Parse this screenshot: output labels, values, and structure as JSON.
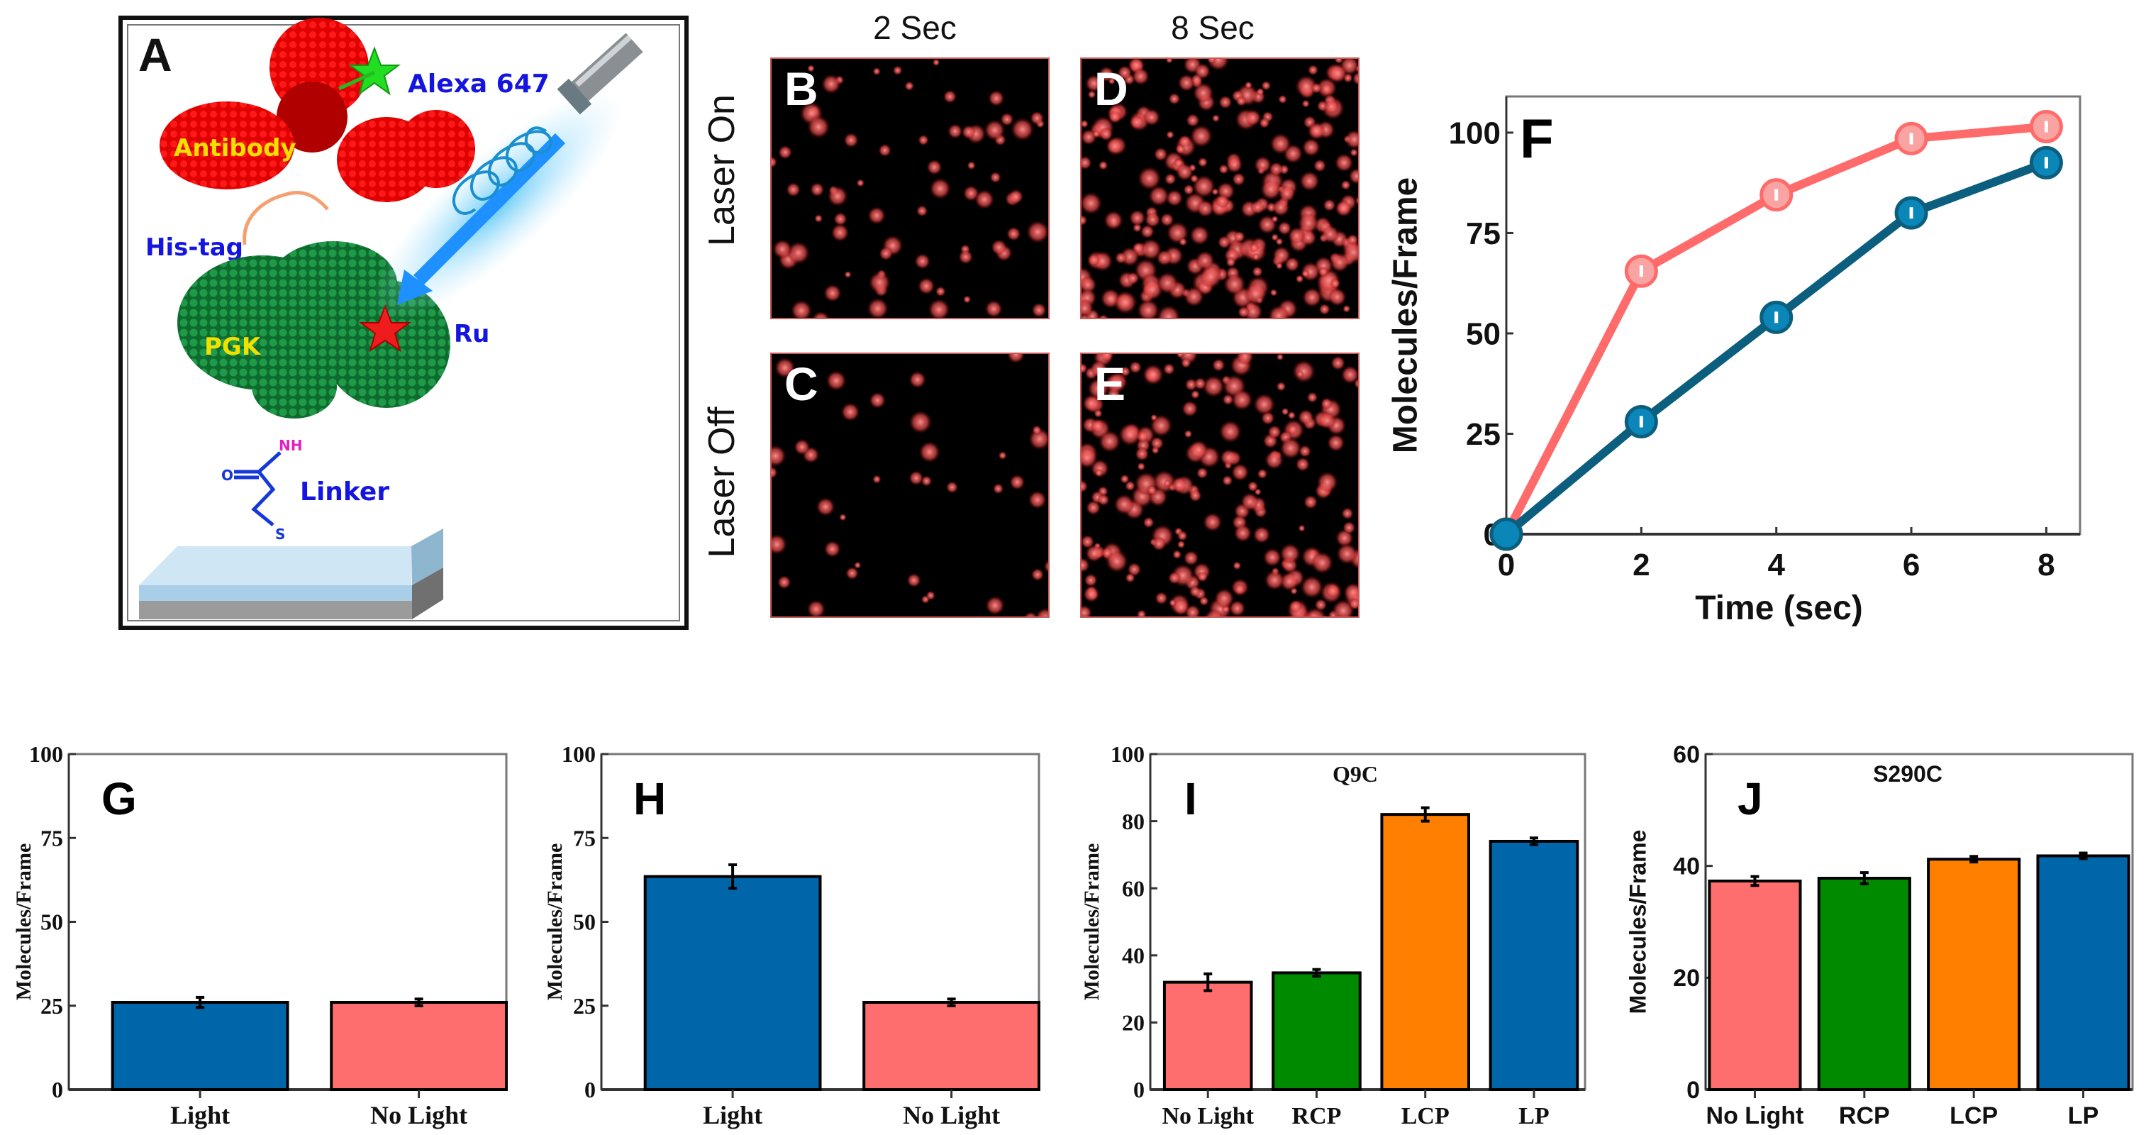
{
  "panel_a": {
    "label": "A",
    "alexa": "Alexa 647",
    "antibody": "Antibody",
    "his_tag": "His-tag",
    "pgk": "PGK",
    "ru": "Ru",
    "linker": "Linker",
    "nh": "NH",
    "o": "O",
    "s": "S"
  },
  "microscopy": {
    "columns": [
      "2 Sec",
      "8 Sec"
    ],
    "rows": [
      "Laser On",
      "Laser Off"
    ],
    "panels": [
      {
        "label": "B",
        "row": 0,
        "col": 0
      },
      {
        "label": "D",
        "row": 0,
        "col": 1
      },
      {
        "label": "C",
        "row": 1,
        "col": 0
      },
      {
        "label": "E",
        "row": 1,
        "col": 1
      }
    ]
  },
  "chart_data": [
    {
      "id": "F",
      "type": "line",
      "panel_label": "F",
      "title": "",
      "xlabel": "Time (sec)",
      "ylabel": "Molecules/Frame",
      "xlim": [
        0,
        8.5
      ],
      "ylim": [
        0,
        109
      ],
      "xticks": [
        0,
        2,
        4,
        6,
        8
      ],
      "yticks": [
        0,
        25,
        50,
        75,
        100
      ],
      "series": [
        {
          "name": "pink",
          "color": "#ff6b6b",
          "marker": "#f9a3a3",
          "x": [
            0,
            2,
            4,
            6,
            8
          ],
          "y": [
            0,
            65.5,
            84.5,
            98.5,
            101.5
          ]
        },
        {
          "name": "teal",
          "color": "#0b5e7d",
          "marker": "#0a86b8",
          "x": [
            0,
            2,
            4,
            6,
            8
          ],
          "y": [
            0,
            28,
            54,
            80,
            92.5
          ]
        }
      ]
    },
    {
      "id": "G",
      "type": "bar",
      "panel_label": "G",
      "title": "",
      "xlabel": "",
      "ylabel": "Molecules/Frame",
      "ylim": [
        0,
        100
      ],
      "yticks": [
        0,
        25,
        50,
        75,
        100
      ],
      "categories": [
        "Light",
        "No Light"
      ],
      "values": [
        26,
        26
      ],
      "errors": [
        1.5,
        1
      ],
      "colors": [
        "#0066aa",
        "#ff6e6e"
      ]
    },
    {
      "id": "H",
      "type": "bar",
      "panel_label": "H",
      "title": "",
      "xlabel": "",
      "ylabel": "Molecules/Frame",
      "ylim": [
        0,
        100
      ],
      "yticks": [
        0,
        25,
        50,
        75,
        100
      ],
      "categories": [
        "Light",
        "No Light"
      ],
      "values": [
        63.5,
        26
      ],
      "errors": [
        3.5,
        1
      ],
      "colors": [
        "#0066aa",
        "#ff6e6e"
      ]
    },
    {
      "id": "I",
      "type": "bar",
      "panel_label": "I",
      "title": "Q9C",
      "xlabel": "",
      "ylabel": "Molecules/Frame",
      "ylim": [
        0,
        100
      ],
      "yticks": [
        0,
        20,
        40,
        60,
        80,
        100
      ],
      "categories": [
        "No Light",
        "RCP",
        "LCP",
        "LP"
      ],
      "values": [
        32,
        34.8,
        82,
        74
      ],
      "errors": [
        2.5,
        1,
        2,
        1
      ],
      "colors": [
        "#ff6e6e",
        "#008a00",
        "#ff8000",
        "#0066aa"
      ]
    },
    {
      "id": "J",
      "type": "bar",
      "panel_label": "J",
      "title": "S290C",
      "xlabel": "",
      "ylabel": "Molecules/Frame",
      "ylim": [
        0,
        60
      ],
      "yticks": [
        0,
        20,
        40,
        60
      ],
      "categories": [
        "No Light",
        "RCP",
        "LCP",
        "LP"
      ],
      "values": [
        37.3,
        37.8,
        41.2,
        41.8
      ],
      "errors": [
        0.8,
        1,
        0.5,
        0.5
      ],
      "colors": [
        "#ff6e6e",
        "#008a00",
        "#ff8000",
        "#0066aa"
      ]
    }
  ]
}
